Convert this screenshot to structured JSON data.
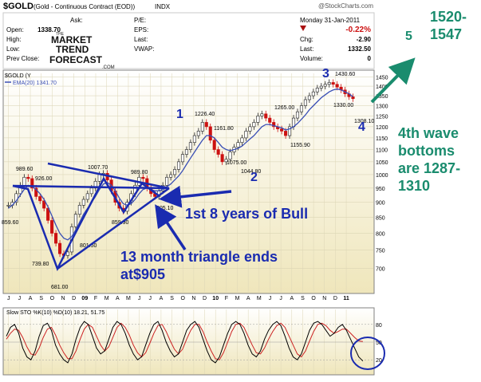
{
  "header": {
    "symbol": "$GOLD",
    "description": "(Gold - Continuous Contract (EOD))",
    "exchange": "INDX",
    "watermark": "@StockCharts.com",
    "date": "Monday  31-Jan-2011",
    "change_pct": "-0.22%",
    "ema_legend": "EMA(20) 1341.70",
    "price_legend": "$GOLD (Y"
  },
  "quote": {
    "left": [
      {
        "label": "Open:",
        "value": "1338.70"
      },
      {
        "label": "High:",
        "value": ""
      },
      {
        "label": "Low:",
        "value": ""
      },
      {
        "label": "Prev Close:",
        "value": ""
      }
    ],
    "ask_label": "Ask:",
    "mid": [
      {
        "label": "P/E:",
        "value": ""
      },
      {
        "label": "EPS:",
        "value": ""
      },
      {
        "label": "Last:",
        "value": ""
      },
      {
        "label": "VWAP:",
        "value": ""
      }
    ],
    "right": [
      {
        "label": "Chg:",
        "value": "-2.90"
      },
      {
        "label": "Last:",
        "value": "1332.50"
      },
      {
        "label": "Volume:",
        "value": "0"
      }
    ]
  },
  "logo": {
    "line1": "THE",
    "line2": "MARKET",
    "line3": "TREND",
    "line4": "FORECAST",
    "line5": ".COM"
  },
  "annotations": {
    "wave1": "1",
    "wave2": "2",
    "wave3": "3",
    "wave4": "4",
    "wave5": "5",
    "target": "1520-\n1547",
    "fourth_wave": "4th wave\nbottoms\nare 1287-\n1310",
    "bull": "1st 8 years of Bull",
    "triangle": "13 month triangle ends\nat$905"
  },
  "colors": {
    "annotation_blue": "#1a2bb0",
    "annotation_teal": "#1a8c6e",
    "candle_up": "#222222",
    "candle_down": "#cc1111",
    "ema": "#3a4fb5",
    "stoch_k": "#000000",
    "stoch_d": "#cc2222",
    "bg_gradient_top": "#ffffff",
    "bg_gradient_bottom": "#efe6bb"
  },
  "chart_data": [
    {
      "type": "line",
      "title": "$GOLD (Gold - Continuous Contract (EOD)) INDX",
      "x_labels": [
        "J",
        "J",
        "A",
        "S",
        "O",
        "N",
        "D",
        "09",
        "F",
        "M",
        "A",
        "M",
        "J",
        "J",
        "A",
        "S",
        "O",
        "N",
        "D",
        "10",
        "F",
        "M",
        "A",
        "M",
        "J",
        "J",
        "A",
        "S",
        "O",
        "N",
        "D",
        "11"
      ],
      "y_ticks": [
        700,
        750,
        800,
        850,
        900,
        950,
        1000,
        1050,
        1100,
        1150,
        1200,
        1250,
        1300,
        1350,
        1400,
        1450
      ],
      "ylim": [
        640,
        1470
      ],
      "y_scale": "log",
      "grid": true,
      "series": [
        {
          "name": "$GOLD",
          "values": [
            890,
            900,
            930,
            960,
            990,
            985,
            950,
            920,
            905,
            880,
            840,
            800,
            770,
            740,
            735,
            745,
            820,
            860,
            890,
            910,
            930,
            950,
            975,
            1000,
            1005,
            980,
            940,
            900,
            880,
            870,
            900,
            930,
            960,
            990,
            985,
            950,
            930,
            920,
            940,
            960,
            990,
            1000,
            1020,
            1050,
            1080,
            1100,
            1130,
            1160,
            1180,
            1220,
            1200,
            1140,
            1100,
            1080,
            1050,
            1060,
            1090,
            1110,
            1130,
            1150,
            1180,
            1200,
            1220,
            1250,
            1260,
            1240,
            1220,
            1200,
            1190,
            1180,
            1160,
            1200,
            1240,
            1270,
            1300,
            1330,
            1350,
            1370,
            1390,
            1400,
            1410,
            1420,
            1410,
            1395,
            1380,
            1360,
            1345,
            1335
          ]
        },
        {
          "name": "EMA(20)",
          "values": [
            880,
            890,
            905,
            925,
            945,
            960,
            955,
            945,
            930,
            910,
            885,
            855,
            825,
            800,
            785,
            780,
            790,
            810,
            835,
            860,
            880,
            900,
            920,
            945,
            965,
            970,
            960,
            940,
            915,
            895,
            890,
            895,
            910,
            930,
            945,
            950,
            945,
            940,
            940,
            945,
            955,
            965,
            980,
            995,
            1015,
            1040,
            1065,
            1090,
            1115,
            1140,
            1160,
            1160,
            1150,
            1130,
            1110,
            1100,
            1095,
            1100,
            1105,
            1115,
            1130,
            1145,
            1160,
            1180,
            1200,
            1210,
            1210,
            1205,
            1200,
            1195,
            1185,
            1190,
            1200,
            1215,
            1235,
            1255,
            1280,
            1300,
            1320,
            1340,
            1355,
            1370,
            1380,
            1385,
            1380,
            1370,
            1360,
            1345
          ]
        }
      ],
      "point_labels": [
        "989.60",
        "926.00",
        "739.80",
        "681.00",
        "801.50",
        "859.90",
        "1007.70",
        "989.80",
        "905.10",
        "859.60",
        "1226.40",
        "1161.80",
        "1075.00",
        "1044.80",
        "1265.00",
        "1155.90",
        "1430.60",
        "1330.00",
        "1308.10"
      ]
    },
    {
      "type": "line",
      "title": "Slow STO %K(10) %D(10) 18.21, 51.75",
      "ylim": [
        0,
        100
      ],
      "y_ticks": [
        20,
        50,
        80
      ],
      "series": [
        {
          "name": "%K(10)",
          "values": [
            60,
            75,
            80,
            65,
            40,
            25,
            20,
            35,
            60,
            78,
            82,
            70,
            45,
            30,
            20,
            15,
            30,
            55,
            75,
            85,
            80,
            60,
            40,
            30,
            35,
            55,
            75,
            85,
            80,
            65,
            45,
            30,
            20,
            25,
            45,
            65,
            80,
            85,
            70,
            50,
            35,
            25,
            30,
            50,
            70,
            80,
            85,
            75,
            55,
            35,
            20,
            15,
            25,
            45,
            65,
            80,
            85,
            80,
            65,
            45,
            30,
            25,
            35,
            55,
            70,
            80,
            85,
            78,
            60,
            40,
            25,
            20,
            30,
            50,
            70,
            82,
            85,
            80,
            70,
            60,
            65,
            75,
            80,
            70,
            55,
            40,
            25,
            18
          ]
        },
        {
          "name": "%D(10)",
          "values": [
            55,
            65,
            72,
            70,
            58,
            42,
            30,
            28,
            40,
            58,
            72,
            75,
            62,
            45,
            32,
            22,
            22,
            35,
            55,
            72,
            80,
            75,
            60,
            45,
            35,
            42,
            58,
            75,
            82,
            75,
            62,
            45,
            32,
            25,
            32,
            48,
            65,
            78,
            80,
            68,
            52,
            38,
            30,
            38,
            55,
            70,
            80,
            80,
            68,
            50,
            35,
            22,
            20,
            32,
            50,
            68,
            80,
            82,
            75,
            60,
            45,
            32,
            30,
            40,
            55,
            68,
            78,
            82,
            75,
            60,
            45,
            30,
            25,
            35,
            52,
            68,
            80,
            82,
            78,
            70,
            65,
            68,
            72,
            72,
            65,
            58,
            52,
            51
          ]
        }
      ]
    }
  ]
}
